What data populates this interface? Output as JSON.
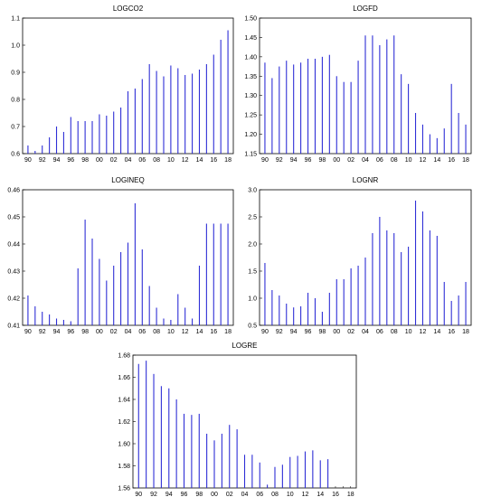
{
  "chart_data": [
    {
      "type": "bar",
      "title": "LOGCO2",
      "x": [
        1990,
        1991,
        1992,
        1993,
        1994,
        1995,
        1996,
        1997,
        1998,
        1999,
        2000,
        2001,
        2002,
        2003,
        2004,
        2005,
        2006,
        2007,
        2008,
        2009,
        2010,
        2011,
        2012,
        2013,
        2014,
        2015,
        2016,
        2017,
        2018
      ],
      "values": [
        0.63,
        0.61,
        0.63,
        0.66,
        0.7,
        0.68,
        0.735,
        0.72,
        0.72,
        0.72,
        0.745,
        0.74,
        0.755,
        0.77,
        0.83,
        0.84,
        0.875,
        0.93,
        0.905,
        0.885,
        0.925,
        0.915,
        0.89,
        0.895,
        0.91,
        0.93,
        0.965,
        1.02,
        1.055
      ],
      "ylim": [
        0.6,
        1.1
      ],
      "yticks": [
        "0.6",
        "0.7",
        "0.8",
        "0.9",
        "1.0",
        "1.1"
      ],
      "xticklabels": [
        "90",
        "92",
        "94",
        "96",
        "98",
        "00",
        "02",
        "04",
        "06",
        "08",
        "10",
        "12",
        "14",
        "16",
        "18"
      ],
      "grid": false
    },
    {
      "type": "bar",
      "title": "LOGFD",
      "x": [
        1990,
        1991,
        1992,
        1993,
        1994,
        1995,
        1996,
        1997,
        1998,
        1999,
        2000,
        2001,
        2002,
        2003,
        2004,
        2005,
        2006,
        2007,
        2008,
        2009,
        2010,
        2011,
        2012,
        2013,
        2014,
        2015,
        2016,
        2017,
        2018
      ],
      "values": [
        1.385,
        1.345,
        1.375,
        1.39,
        1.38,
        1.385,
        1.395,
        1.395,
        1.4,
        1.405,
        1.35,
        1.335,
        1.335,
        1.39,
        1.455,
        1.455,
        1.43,
        1.445,
        1.455,
        1.355,
        1.33,
        1.255,
        1.225,
        1.2,
        1.19,
        1.215,
        1.33,
        1.255,
        1.225
      ],
      "ylim": [
        1.15,
        1.5
      ],
      "yticks": [
        "1.15",
        "1.20",
        "1.25",
        "1.30",
        "1.35",
        "1.40",
        "1.45",
        "1.50"
      ],
      "xticklabels": [
        "90",
        "92",
        "94",
        "96",
        "98",
        "00",
        "02",
        "04",
        "06",
        "08",
        "10",
        "12",
        "14",
        "16",
        "18"
      ],
      "grid": false
    },
    {
      "type": "bar",
      "title": "LOGINEQ",
      "x": [
        1990,
        1991,
        1992,
        1993,
        1994,
        1995,
        1996,
        1997,
        1998,
        1999,
        2000,
        2001,
        2002,
        2003,
        2004,
        2005,
        2006,
        2007,
        2008,
        2009,
        2010,
        2011,
        2012,
        2013,
        2014,
        2015,
        2016,
        2017,
        2018
      ],
      "values": [
        0.421,
        0.417,
        0.415,
        0.414,
        0.4125,
        0.412,
        0.4115,
        0.431,
        0.449,
        0.442,
        0.4345,
        0.4265,
        0.432,
        0.437,
        0.4405,
        0.455,
        0.438,
        0.4245,
        0.4165,
        0.4125,
        0.412,
        0.4215,
        0.4165,
        0.4125,
        0.432,
        0.4475,
        0.4475,
        0.4475,
        0.4475
      ],
      "ylim": [
        0.41,
        0.46
      ],
      "yticks": [
        "0.41",
        "0.42",
        "0.43",
        "0.44",
        "0.45",
        "0.46"
      ],
      "xticklabels": [
        "90",
        "92",
        "94",
        "96",
        "98",
        "00",
        "02",
        "04",
        "06",
        "08",
        "10",
        "12",
        "14",
        "16",
        "18"
      ],
      "grid": false
    },
    {
      "type": "bar",
      "title": "LOGNR",
      "x": [
        1990,
        1991,
        1992,
        1993,
        1994,
        1995,
        1996,
        1997,
        1998,
        1999,
        2000,
        2001,
        2002,
        2003,
        2004,
        2005,
        2006,
        2007,
        2008,
        2009,
        2010,
        2011,
        2012,
        2013,
        2014,
        2015,
        2016,
        2017,
        2018
      ],
      "values": [
        1.65,
        1.15,
        1.05,
        0.9,
        0.83,
        0.85,
        1.1,
        1.0,
        0.75,
        1.1,
        1.35,
        1.35,
        1.55,
        1.6,
        1.75,
        2.2,
        2.5,
        2.25,
        2.2,
        1.85,
        1.95,
        2.8,
        2.6,
        2.25,
        2.15,
        1.3,
        0.95,
        1.05,
        1.3
      ],
      "ylim": [
        0.5,
        3.0
      ],
      "yticks": [
        "0.5",
        "1.0",
        "1.5",
        "2.0",
        "2.5",
        "3.0"
      ],
      "xticklabels": [
        "90",
        "92",
        "94",
        "96",
        "98",
        "00",
        "02",
        "04",
        "06",
        "08",
        "10",
        "12",
        "14",
        "16",
        "18"
      ],
      "grid": false
    },
    {
      "type": "bar",
      "title": "LOGRE",
      "x": [
        1990,
        1991,
        1992,
        1993,
        1994,
        1995,
        1996,
        1997,
        1998,
        1999,
        2000,
        2001,
        2002,
        2003,
        2004,
        2005,
        2006,
        2007,
        2008,
        2009,
        2010,
        2011,
        2012,
        2013,
        2014,
        2015,
        2016,
        2017,
        2018
      ],
      "values": [
        1.672,
        1.675,
        1.663,
        1.652,
        1.65,
        1.64,
        1.627,
        1.626,
        1.627,
        1.609,
        1.603,
        1.609,
        1.617,
        1.613,
        1.59,
        1.59,
        1.583,
        1.563,
        1.579,
        1.581,
        1.588,
        1.589,
        1.593,
        1.594,
        1.585,
        1.586,
        null,
        null,
        null
      ],
      "ylim": [
        1.56,
        1.68
      ],
      "yticks": [
        "1.56",
        "1.58",
        "1.60",
        "1.62",
        "1.64",
        "1.66",
        "1.68"
      ],
      "xticklabels": [
        "90",
        "92",
        "94",
        "96",
        "98",
        "00",
        "02",
        "04",
        "06",
        "08",
        "10",
        "12",
        "14",
        "16",
        "18"
      ],
      "grid": false
    }
  ],
  "colors": {
    "bar": "#2f2fd6",
    "frame": "#000000",
    "background": "#ffffff"
  }
}
